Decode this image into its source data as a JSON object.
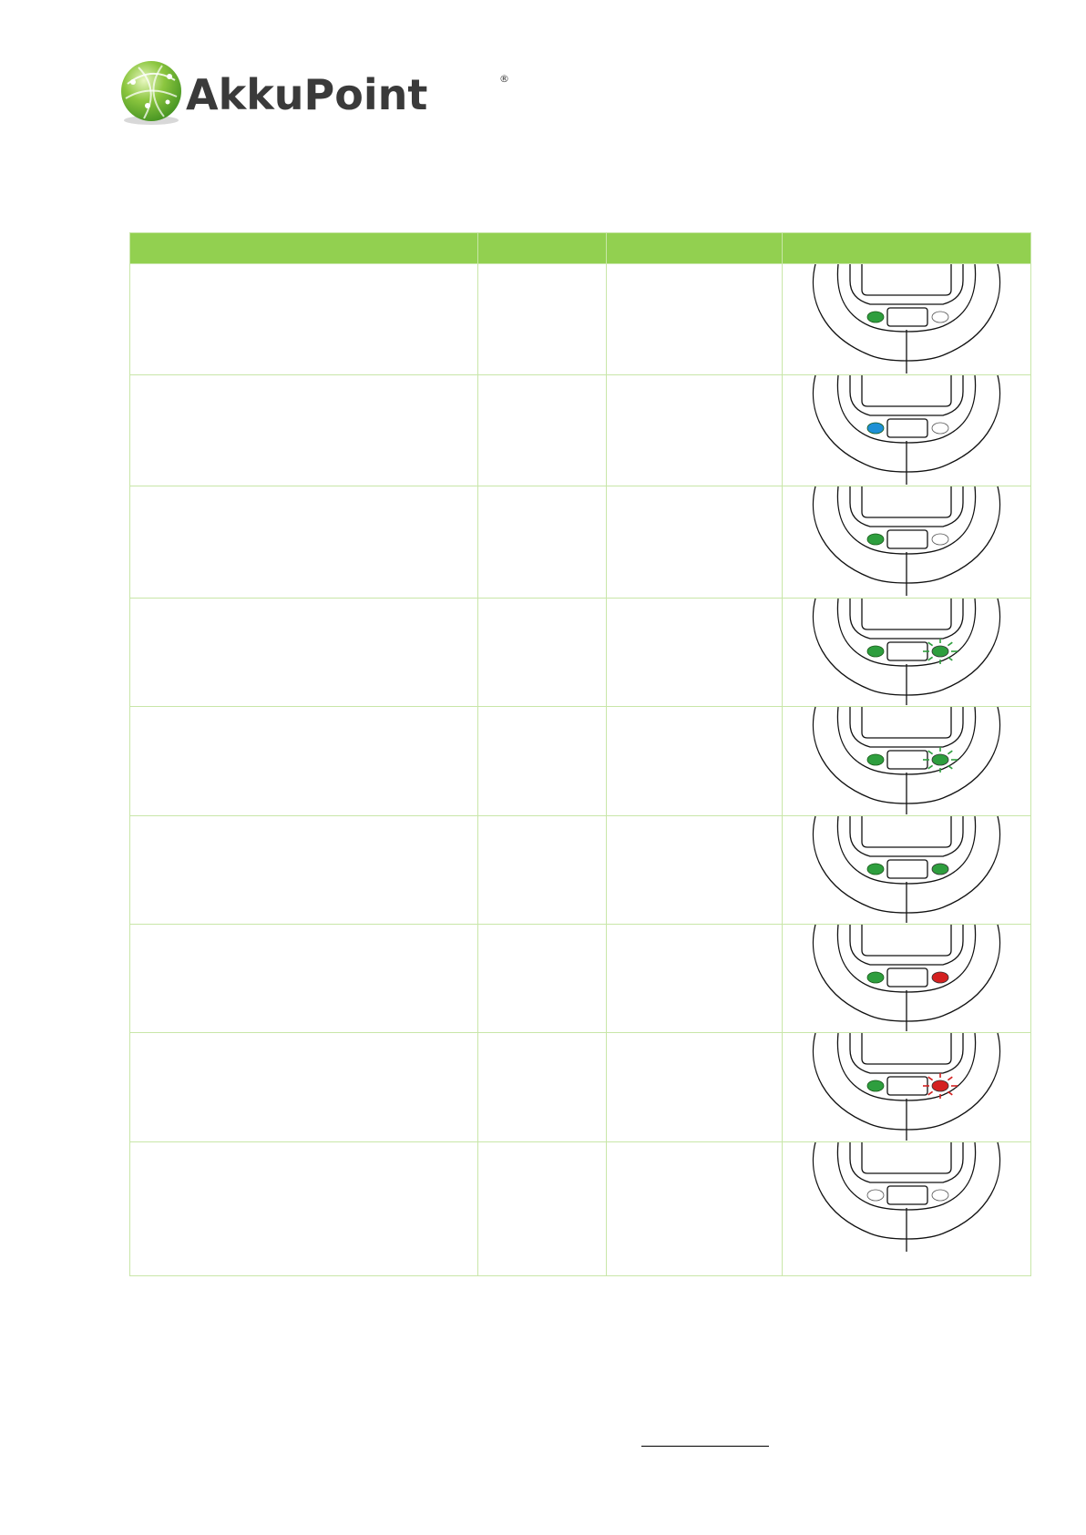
{
  "brand": {
    "name": "AkkuPoint",
    "registered": "®",
    "accent": "#8cc63f"
  },
  "table": {
    "headers": [
      "",
      "",
      "",
      ""
    ],
    "header_color": "#92d050",
    "rows": [
      {
        "c1": "",
        "c2": "",
        "c3": "",
        "left_led": "green",
        "right_led": "off",
        "right_blink": false
      },
      {
        "c1": "",
        "c2": "",
        "c3": "",
        "left_led": "blue",
        "right_led": "off",
        "right_blink": false
      },
      {
        "c1": "",
        "c2": "",
        "c3": "",
        "left_led": "green",
        "right_led": "off",
        "right_blink": false
      },
      {
        "c1": "",
        "c2": "",
        "c3": "",
        "left_led": "green",
        "right_led": "green",
        "right_blink": true
      },
      {
        "c1": "",
        "c2": "",
        "c3": "",
        "left_led": "green",
        "right_led": "green",
        "right_blink": true
      },
      {
        "c1": "",
        "c2": "",
        "c3": "",
        "left_led": "green",
        "right_led": "green",
        "right_blink": false
      },
      {
        "c1": "",
        "c2": "",
        "c3": "",
        "left_led": "green",
        "right_led": "red",
        "right_blink": false
      },
      {
        "c1": "",
        "c2": "",
        "c3": "",
        "left_led": "green",
        "right_led": "red",
        "right_blink": true
      },
      {
        "c1": "",
        "c2": "",
        "c3": "",
        "left_led": "off",
        "right_led": "off",
        "right_blink": false
      }
    ]
  },
  "led_colors": {
    "green": "#2e9e3e",
    "blue": "#1e90d6",
    "red": "#d42020",
    "off": "#ffffff"
  }
}
